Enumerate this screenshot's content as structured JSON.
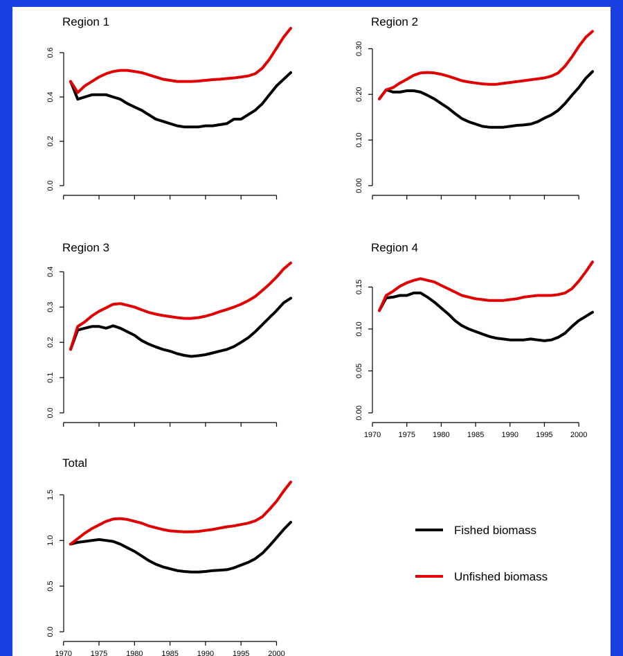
{
  "colors": {
    "background": "#1a3fe0",
    "panel": "#ffffff",
    "fished": "#000000",
    "unfished": "#e00000"
  },
  "legend": {
    "placement": "bottom-right",
    "entries": [
      {
        "key": "fished",
        "label": "Fished biomass"
      },
      {
        "key": "unfished",
        "label": "Unfished biomass"
      }
    ]
  },
  "chart_data": [
    {
      "type": "line",
      "title": "Region 1",
      "xlim": [
        1971,
        2002
      ],
      "yticks": [
        "0.0",
        "0.2",
        "0.4",
        "0.6"
      ],
      "ytick_values": [
        0,
        0.2,
        0.4,
        0.6
      ],
      "ylim": [
        0,
        0.7
      ],
      "x": [
        1971,
        1972,
        1973,
        1974,
        1975,
        1976,
        1977,
        1978,
        1979,
        1980,
        1981,
        1982,
        1983,
        1984,
        1985,
        1986,
        1987,
        1988,
        1989,
        1990,
        1991,
        1992,
        1993,
        1994,
        1995,
        1996,
        1997,
        1998,
        1999,
        2000,
        2001,
        2002
      ],
      "series": [
        {
          "key": "fished",
          "values": [
            0.47,
            0.39,
            0.4,
            0.41,
            0.41,
            0.41,
            0.4,
            0.39,
            0.37,
            0.355,
            0.34,
            0.32,
            0.3,
            0.29,
            0.28,
            0.27,
            0.265,
            0.265,
            0.265,
            0.27,
            0.27,
            0.275,
            0.28,
            0.3,
            0.3,
            0.32,
            0.34,
            0.37,
            0.41,
            0.45,
            0.48,
            0.51
          ]
        },
        {
          "key": "unfished",
          "values": [
            0.47,
            0.42,
            0.45,
            0.47,
            0.49,
            0.505,
            0.515,
            0.52,
            0.52,
            0.515,
            0.51,
            0.5,
            0.49,
            0.48,
            0.475,
            0.47,
            0.47,
            0.47,
            0.472,
            0.475,
            0.478,
            0.48,
            0.483,
            0.486,
            0.49,
            0.495,
            0.505,
            0.53,
            0.57,
            0.62,
            0.67,
            0.71
          ]
        }
      ]
    },
    {
      "type": "line",
      "title": "Region 2",
      "xlim": [
        1971,
        2002
      ],
      "yticks": [
        "0.00",
        "0.10",
        "0.20",
        "0.30"
      ],
      "ytick_values": [
        0,
        0.1,
        0.2,
        0.3
      ],
      "ylim": [
        0,
        0.34
      ],
      "x": [
        1971,
        1972,
        1973,
        1974,
        1975,
        1976,
        1977,
        1978,
        1979,
        1980,
        1981,
        1982,
        1983,
        1984,
        1985,
        1986,
        1987,
        1988,
        1989,
        1990,
        1991,
        1992,
        1993,
        1994,
        1995,
        1996,
        1997,
        1998,
        1999,
        2000,
        2001,
        2002
      ],
      "series": [
        {
          "key": "fished",
          "values": [
            0.19,
            0.21,
            0.205,
            0.205,
            0.208,
            0.208,
            0.205,
            0.198,
            0.19,
            0.18,
            0.17,
            0.158,
            0.147,
            0.14,
            0.135,
            0.13,
            0.128,
            0.128,
            0.128,
            0.13,
            0.132,
            0.133,
            0.135,
            0.14,
            0.148,
            0.155,
            0.165,
            0.18,
            0.198,
            0.215,
            0.235,
            0.25
          ]
        },
        {
          "key": "unfished",
          "values": [
            0.19,
            0.21,
            0.215,
            0.225,
            0.233,
            0.242,
            0.247,
            0.248,
            0.247,
            0.244,
            0.24,
            0.235,
            0.23,
            0.227,
            0.225,
            0.223,
            0.222,
            0.222,
            0.224,
            0.226,
            0.228,
            0.23,
            0.232,
            0.234,
            0.236,
            0.24,
            0.247,
            0.262,
            0.282,
            0.305,
            0.325,
            0.338
          ]
        }
      ]
    },
    {
      "type": "line",
      "title": "Region 3",
      "xlim": [
        1971,
        2002
      ],
      "yticks": [
        "0.0",
        "0.1",
        "0.2",
        "0.3",
        "0.4"
      ],
      "ytick_values": [
        0,
        0.1,
        0.2,
        0.3,
        0.4
      ],
      "ylim": [
        0,
        0.44
      ],
      "x": [
        1971,
        1972,
        1973,
        1974,
        1975,
        1976,
        1977,
        1978,
        1979,
        1980,
        1981,
        1982,
        1983,
        1984,
        1985,
        1986,
        1987,
        1988,
        1989,
        1990,
        1991,
        1992,
        1993,
        1994,
        1995,
        1996,
        1997,
        1998,
        1999,
        2000,
        2001,
        2002
      ],
      "series": [
        {
          "key": "fished",
          "values": [
            0.18,
            0.235,
            0.24,
            0.245,
            0.245,
            0.24,
            0.247,
            0.24,
            0.23,
            0.22,
            0.205,
            0.195,
            0.187,
            0.18,
            0.175,
            0.168,
            0.163,
            0.16,
            0.162,
            0.165,
            0.17,
            0.175,
            0.18,
            0.188,
            0.2,
            0.213,
            0.23,
            0.25,
            0.27,
            0.29,
            0.312,
            0.325
          ]
        },
        {
          "key": "unfished",
          "values": [
            0.18,
            0.245,
            0.258,
            0.275,
            0.288,
            0.298,
            0.308,
            0.31,
            0.305,
            0.3,
            0.292,
            0.285,
            0.28,
            0.276,
            0.273,
            0.27,
            0.268,
            0.268,
            0.27,
            0.274,
            0.28,
            0.287,
            0.293,
            0.3,
            0.308,
            0.318,
            0.33,
            0.347,
            0.365,
            0.385,
            0.408,
            0.425
          ]
        }
      ]
    },
    {
      "type": "line",
      "title": "Region 4",
      "xlim": [
        1971,
        2002
      ],
      "xticks": [
        "1970",
        "1975",
        "1980",
        "1985",
        "1990",
        "1995",
        "2000"
      ],
      "xtick_values": [
        1970,
        1975,
        1980,
        1985,
        1990,
        1995,
        2000
      ],
      "yticks": [
        "0.00",
        "0.05",
        "0.10",
        "0.15"
      ],
      "ytick_values": [
        0,
        0.05,
        0.1,
        0.15
      ],
      "ylim": [
        0,
        0.185
      ],
      "x": [
        1971,
        1972,
        1973,
        1974,
        1975,
        1976,
        1977,
        1978,
        1979,
        1980,
        1981,
        1982,
        1983,
        1984,
        1985,
        1986,
        1987,
        1988,
        1989,
        1990,
        1991,
        1992,
        1993,
        1994,
        1995,
        1996,
        1997,
        1998,
        1999,
        2000,
        2001,
        2002
      ],
      "series": [
        {
          "key": "fished",
          "values": [
            0.122,
            0.137,
            0.138,
            0.14,
            0.14,
            0.143,
            0.143,
            0.138,
            0.132,
            0.125,
            0.118,
            0.11,
            0.104,
            0.1,
            0.097,
            0.094,
            0.091,
            0.089,
            0.088,
            0.087,
            0.087,
            0.087,
            0.088,
            0.087,
            0.086,
            0.087,
            0.09,
            0.095,
            0.103,
            0.11,
            0.115,
            0.12
          ]
        },
        {
          "key": "unfished",
          "values": [
            0.122,
            0.14,
            0.145,
            0.151,
            0.155,
            0.158,
            0.16,
            0.158,
            0.156,
            0.152,
            0.148,
            0.144,
            0.14,
            0.138,
            0.136,
            0.135,
            0.134,
            0.134,
            0.134,
            0.135,
            0.136,
            0.138,
            0.139,
            0.14,
            0.14,
            0.14,
            0.141,
            0.143,
            0.148,
            0.157,
            0.168,
            0.18
          ]
        }
      ]
    },
    {
      "type": "line",
      "title": "Total",
      "xlim": [
        1971,
        2002
      ],
      "xticks": [
        "1970",
        "1975",
        "1980",
        "1985",
        "1990",
        "1995",
        "2000"
      ],
      "xtick_values": [
        1970,
        1975,
        1980,
        1985,
        1990,
        1995,
        2000
      ],
      "yticks": [
        "0.0",
        "0.5",
        "1.0",
        "1.5"
      ],
      "ytick_values": [
        0,
        0.5,
        1.0,
        1.5
      ],
      "ylim": [
        0,
        1.7
      ],
      "x": [
        1971,
        1972,
        1973,
        1974,
        1975,
        1976,
        1977,
        1978,
        1979,
        1980,
        1981,
        1982,
        1983,
        1984,
        1985,
        1986,
        1987,
        1988,
        1989,
        1990,
        1991,
        1992,
        1993,
        1994,
        1995,
        1996,
        1997,
        1998,
        1999,
        2000,
        2001,
        2002
      ],
      "series": [
        {
          "key": "fished",
          "values": [
            0.96,
            0.98,
            0.99,
            1.0,
            1.01,
            1.0,
            0.99,
            0.96,
            0.92,
            0.88,
            0.83,
            0.78,
            0.74,
            0.71,
            0.69,
            0.67,
            0.66,
            0.655,
            0.655,
            0.66,
            0.67,
            0.675,
            0.68,
            0.7,
            0.73,
            0.76,
            0.8,
            0.86,
            0.94,
            1.03,
            1.12,
            1.2
          ]
        },
        {
          "key": "unfished",
          "values": [
            0.96,
            1.02,
            1.08,
            1.13,
            1.17,
            1.21,
            1.235,
            1.24,
            1.23,
            1.21,
            1.19,
            1.16,
            1.14,
            1.12,
            1.105,
            1.1,
            1.095,
            1.095,
            1.1,
            1.11,
            1.12,
            1.135,
            1.15,
            1.16,
            1.175,
            1.19,
            1.215,
            1.26,
            1.34,
            1.43,
            1.54,
            1.64
          ]
        }
      ]
    }
  ]
}
